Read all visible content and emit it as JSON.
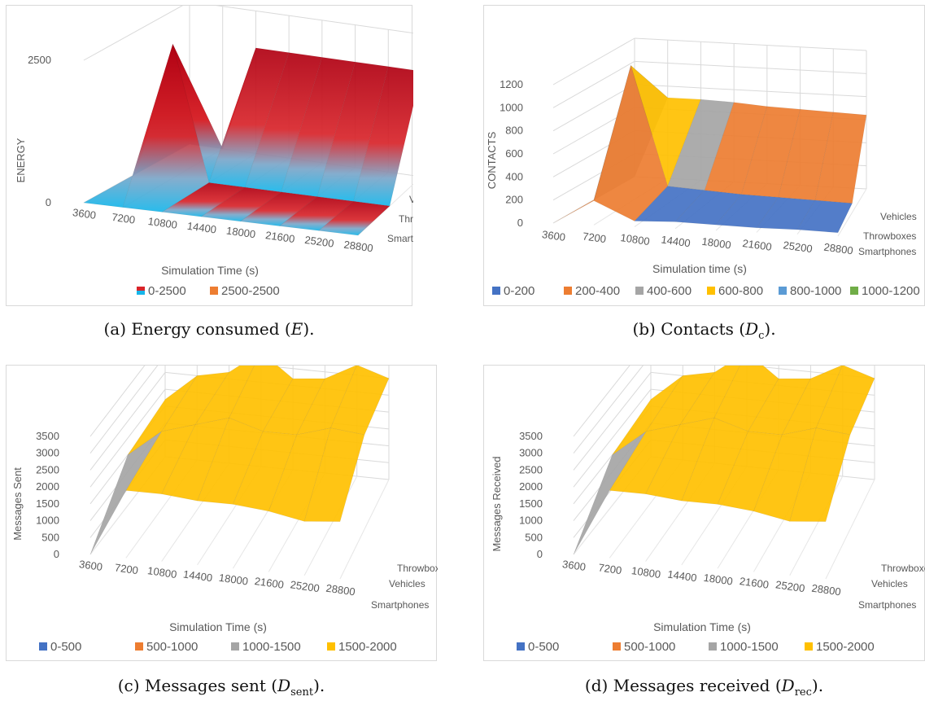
{
  "chart_data": [
    {
      "type": "area",
      "panel": "a",
      "x": [
        3600,
        7200,
        10800,
        14400,
        18000,
        21600,
        25200,
        28800
      ],
      "depth_categories": [
        "Smartphone",
        "Throwboxes",
        "Vehicles"
      ],
      "ylabel": "ENERGY",
      "xlabel": "Simulation Time (s)",
      "yticks": [
        "0",
        "2500"
      ],
      "ylim": [
        0,
        2500
      ],
      "legend": [
        "0-2500",
        "2500-2500"
      ],
      "legend_colors": [
        "#d8242a",
        "#ed7d31"
      ],
      "surface": {
        "Vehicles": [
          0,
          0,
          1850,
          1850,
          1850,
          1850,
          1850,
          1850
        ],
        "Throwboxes": [
          0,
          2350,
          0,
          0,
          0,
          0,
          0,
          0
        ],
        "Smartphone": [
          0,
          0,
          0,
          0,
          0,
          0,
          0,
          0
        ]
      },
      "caption_text": "(a)  Energy consumed (",
      "caption_var": "E",
      "caption_sub": "",
      "caption_end": ")."
    },
    {
      "type": "area",
      "panel": "b",
      "x": [
        3600,
        7200,
        10800,
        14400,
        18000,
        21600,
        25200,
        28800
      ],
      "depth_categories": [
        "Smartphones",
        "Throwboxes",
        "Vehicles"
      ],
      "ylabel": "CONTACTS",
      "xlabel": "Simulation time (s)",
      "yticks": [
        "0",
        "200",
        "400",
        "600",
        "800",
        "1000",
        "1200"
      ],
      "ylim": [
        0,
        1200
      ],
      "legend": [
        "0-200",
        "200-400",
        "400-600",
        "600-800",
        "800-1000",
        "1000-1200"
      ],
      "legend_colors": [
        "#4472c4",
        "#ed7d31",
        "#a5a5a5",
        "#ffc000",
        "#5b9bd5",
        "#70ad47"
      ],
      "surface": {
        "Vehicles": [
          0,
          700,
          700,
          690,
          670,
          660,
          650,
          640
        ],
        "Throwboxes": [
          0,
          1180,
          150,
          130,
          110,
          100,
          90,
          80
        ],
        "Smartphones": [
          0,
          210,
          50,
          60,
          50,
          40,
          40,
          30
        ]
      },
      "caption_text": "(b)  Contacts (",
      "caption_var": "D",
      "caption_sub": "c",
      "caption_end": ")."
    },
    {
      "type": "area",
      "panel": "c",
      "x": [
        3600,
        7200,
        10800,
        14400,
        18000,
        21600,
        25200,
        28800
      ],
      "depth_categories": [
        "Smartphones",
        "Vehicles",
        "Throwboxes"
      ],
      "ylabel": "Messages Sent",
      "xlabel": "Simulation Time (s)",
      "yticks": [
        "0",
        "500",
        "1000",
        "1500",
        "2000",
        "2500",
        "3000",
        "3500"
      ],
      "ylim": [
        0,
        3500
      ],
      "legend": [
        "0-500",
        "500-1000",
        "1000-1500",
        "1500-2000"
      ],
      "legend_colors": [
        "#4472c4",
        "#ed7d31",
        "#a5a5a5",
        "#ffc000"
      ],
      "surface": {
        "Throwboxes": [
          1700,
          2500,
          2700,
          3400,
          2700,
          2800,
          3300,
          3000
        ],
        "Vehicles": [
          1500,
          2300,
          2600,
          2900,
          2600,
          2600,
          2900,
          2800
        ],
        "Smartphones": [
          0,
          2000,
          2000,
          1900,
          1900,
          1800,
          1600,
          1700
        ]
      },
      "caption_text": "(c)  Messages sent (",
      "caption_var": "D",
      "caption_sub": "sent",
      "caption_end": ")."
    },
    {
      "type": "area",
      "panel": "d",
      "x": [
        3600,
        7200,
        10800,
        14400,
        18000,
        21600,
        25200,
        28800
      ],
      "depth_categories": [
        "Smartphones",
        "Vehicles",
        "Throwboxes"
      ],
      "ylabel": "Messages Received",
      "xlabel": "Simulation Time (s)",
      "yticks": [
        "0",
        "500",
        "1000",
        "1500",
        "2000",
        "2500",
        "3000",
        "3500"
      ],
      "ylim": [
        0,
        3500
      ],
      "legend": [
        "0-500",
        "500-1000",
        "1000-1500",
        "1500-2000"
      ],
      "legend_colors": [
        "#4472c4",
        "#ed7d31",
        "#a5a5a5",
        "#ffc000"
      ],
      "surface": {
        "Throwboxes": [
          1700,
          2500,
          2700,
          3400,
          2700,
          2800,
          3300,
          3000
        ],
        "Vehicles": [
          1500,
          2300,
          2600,
          2900,
          2600,
          2600,
          2900,
          2800
        ],
        "Smartphones": [
          0,
          2000,
          2000,
          1900,
          1900,
          1800,
          1600,
          1700
        ]
      },
      "caption_text": "(d)  Messages received (",
      "caption_var": "D",
      "caption_sub": "rec",
      "caption_end": ")."
    }
  ]
}
